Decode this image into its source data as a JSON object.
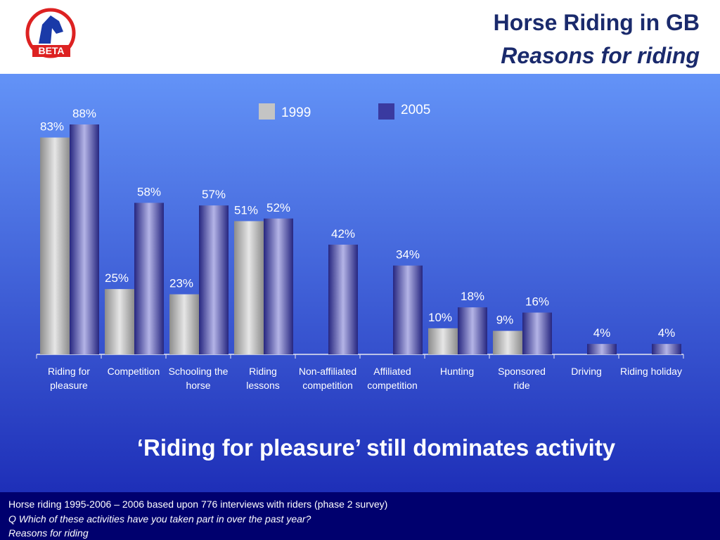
{
  "header": {
    "logo_text": "BETA",
    "title": "Horse Riding in GB",
    "subtitle": "Reasons for riding"
  },
  "chart_data": {
    "type": "bar",
    "categories": [
      "Riding for pleasure",
      "Competition",
      "Schooling the horse",
      "Riding lessons",
      "Non-affiliated competition",
      "Affiliated competition",
      "Hunting",
      "Sponsored ride",
      "Driving",
      "Riding holiday"
    ],
    "series": [
      {
        "name": "1999",
        "color": "#c4c4c4",
        "values": [
          83,
          25,
          23,
          51,
          null,
          null,
          10,
          9,
          null,
          null
        ],
        "value_labels": [
          "83%",
          "25%",
          "23%",
          "51%",
          null,
          null,
          "10%",
          "9%",
          null,
          null
        ]
      },
      {
        "name": "2005",
        "color": "#3a3aa0",
        "values": [
          88,
          58,
          57,
          52,
          42,
          34,
          18,
          16,
          4,
          4
        ],
        "value_labels": [
          "88%",
          "58%",
          "57%",
          "52%",
          "42%",
          "34%",
          "18%",
          "16%",
          "4%",
          "4%"
        ]
      }
    ]
  },
  "headline": "‘Riding for pleasure’ still dominates activity",
  "footer": {
    "line1": "Horse riding 1995-2006 – 2006 based upon 776 interviews with riders (phase 2 survey)",
    "line2": "Q Which of these activities have you taken part in over the past year?",
    "line3": "Reasons for riding"
  }
}
